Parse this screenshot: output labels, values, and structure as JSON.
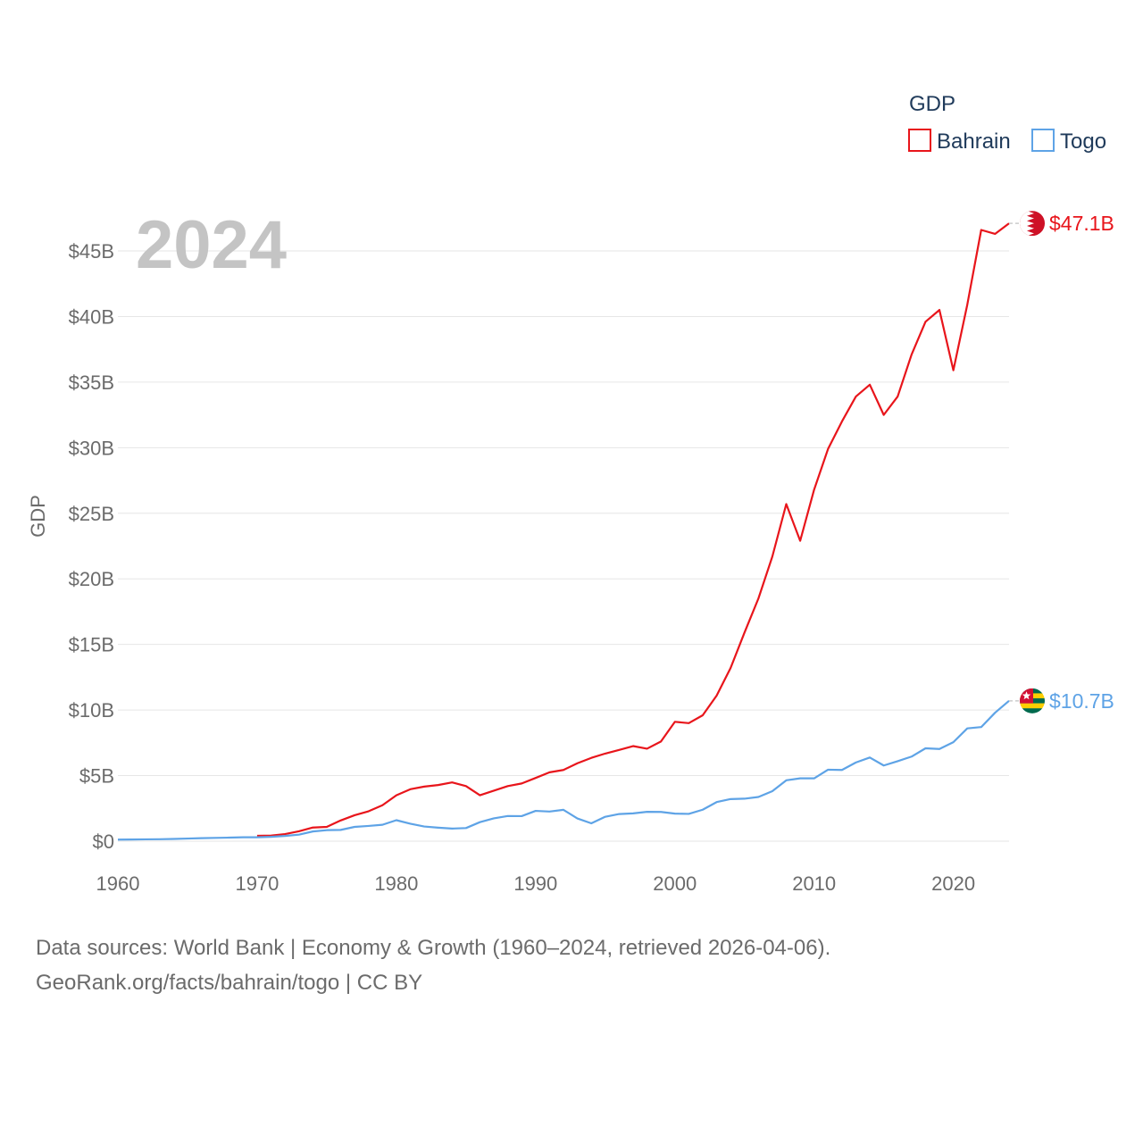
{
  "chart_data": {
    "type": "line",
    "ylabel": "GDP",
    "year_label": "2024",
    "legend": {
      "title": "GDP",
      "position": "top-right"
    },
    "xlim": [
      1960,
      2024
    ],
    "ylim": [
      0,
      47.5
    ],
    "x_ticks": [
      1960,
      1970,
      1980,
      1990,
      2000,
      2010,
      2020
    ],
    "y_ticks": [
      {
        "value": 0,
        "label": "$0"
      },
      {
        "value": 5,
        "label": "$5B"
      },
      {
        "value": 10,
        "label": "$10B"
      },
      {
        "value": 15,
        "label": "$15B"
      },
      {
        "value": 20,
        "label": "$20B"
      },
      {
        "value": 25,
        "label": "$25B"
      },
      {
        "value": 30,
        "label": "$30B"
      },
      {
        "value": 35,
        "label": "$35B"
      },
      {
        "value": 40,
        "label": "$40B"
      },
      {
        "value": 45,
        "label": "$45B"
      }
    ],
    "series": [
      {
        "name": "Bahrain",
        "color": "#e8151b",
        "end_label": "$47.1B",
        "flag": "bahrain-flag",
        "points": [
          [
            1970,
            0.41
          ],
          [
            1971,
            0.43
          ],
          [
            1972,
            0.54
          ],
          [
            1973,
            0.75
          ],
          [
            1974,
            1.04
          ],
          [
            1975,
            1.09
          ],
          [
            1976,
            1.58
          ],
          [
            1977,
            1.98
          ],
          [
            1978,
            2.28
          ],
          [
            1979,
            2.74
          ],
          [
            1980,
            3.5
          ],
          [
            1981,
            3.96
          ],
          [
            1982,
            4.16
          ],
          [
            1983,
            4.28
          ],
          [
            1984,
            4.48
          ],
          [
            1985,
            4.2
          ],
          [
            1986,
            3.5
          ],
          [
            1987,
            3.85
          ],
          [
            1988,
            4.2
          ],
          [
            1989,
            4.4
          ],
          [
            1990,
            4.82
          ],
          [
            1991,
            5.25
          ],
          [
            1992,
            5.43
          ],
          [
            1993,
            5.94
          ],
          [
            1994,
            6.35
          ],
          [
            1995,
            6.68
          ],
          [
            1996,
            6.96
          ],
          [
            1997,
            7.25
          ],
          [
            1998,
            7.05
          ],
          [
            1999,
            7.6
          ],
          [
            2000,
            9.1
          ],
          [
            2001,
            9.0
          ],
          [
            2002,
            9.6
          ],
          [
            2003,
            11.1
          ],
          [
            2004,
            13.2
          ],
          [
            2005,
            15.9
          ],
          [
            2006,
            18.5
          ],
          [
            2007,
            21.7
          ],
          [
            2008,
            25.7
          ],
          [
            2009,
            22.9
          ],
          [
            2010,
            26.8
          ],
          [
            2011,
            29.9
          ],
          [
            2012,
            32.0
          ],
          [
            2013,
            33.9
          ],
          [
            2014,
            34.8
          ],
          [
            2015,
            32.5
          ],
          [
            2016,
            33.9
          ],
          [
            2017,
            37.1
          ],
          [
            2018,
            39.6
          ],
          [
            2019,
            40.5
          ],
          [
            2020,
            35.9
          ],
          [
            2021,
            40.9
          ],
          [
            2022,
            46.6
          ],
          [
            2023,
            46.3
          ],
          [
            2024,
            47.1
          ]
        ]
      },
      {
        "name": "Togo",
        "color": "#5ea3e6",
        "end_label": "$10.7B",
        "flag": "togo-flag",
        "points": [
          [
            1960,
            0.12
          ],
          [
            1961,
            0.13
          ],
          [
            1962,
            0.14
          ],
          [
            1963,
            0.15
          ],
          [
            1964,
            0.17
          ],
          [
            1965,
            0.2
          ],
          [
            1966,
            0.23
          ],
          [
            1967,
            0.25
          ],
          [
            1968,
            0.27
          ],
          [
            1969,
            0.3
          ],
          [
            1970,
            0.3
          ],
          [
            1971,
            0.33
          ],
          [
            1972,
            0.4
          ],
          [
            1973,
            0.5
          ],
          [
            1974,
            0.74
          ],
          [
            1975,
            0.84
          ],
          [
            1976,
            0.86
          ],
          [
            1977,
            1.09
          ],
          [
            1978,
            1.16
          ],
          [
            1979,
            1.25
          ],
          [
            1980,
            1.6
          ],
          [
            1981,
            1.33
          ],
          [
            1982,
            1.12
          ],
          [
            1983,
            1.03
          ],
          [
            1984,
            0.96
          ],
          [
            1985,
            1.0
          ],
          [
            1986,
            1.45
          ],
          [
            1987,
            1.74
          ],
          [
            1988,
            1.92
          ],
          [
            1989,
            1.91
          ],
          [
            1990,
            2.31
          ],
          [
            1991,
            2.26
          ],
          [
            1992,
            2.39
          ],
          [
            1993,
            1.73
          ],
          [
            1994,
            1.36
          ],
          [
            1995,
            1.86
          ],
          [
            1996,
            2.07
          ],
          [
            1997,
            2.12
          ],
          [
            1998,
            2.24
          ],
          [
            1999,
            2.23
          ],
          [
            2000,
            2.1
          ],
          [
            2001,
            2.08
          ],
          [
            2002,
            2.4
          ],
          [
            2003,
            2.98
          ],
          [
            2004,
            3.21
          ],
          [
            2005,
            3.24
          ],
          [
            2006,
            3.37
          ],
          [
            2007,
            3.81
          ],
          [
            2008,
            4.64
          ],
          [
            2009,
            4.79
          ],
          [
            2010,
            4.79
          ],
          [
            2011,
            5.45
          ],
          [
            2012,
            5.43
          ],
          [
            2013,
            6.0
          ],
          [
            2014,
            6.38
          ],
          [
            2015,
            5.77
          ],
          [
            2016,
            6.1
          ],
          [
            2017,
            6.45
          ],
          [
            2018,
            7.08
          ],
          [
            2019,
            7.03
          ],
          [
            2020,
            7.55
          ],
          [
            2021,
            8.6
          ],
          [
            2022,
            8.7
          ],
          [
            2023,
            9.8
          ],
          [
            2024,
            10.7
          ]
        ]
      }
    ]
  },
  "footer": {
    "line1": "Data sources: World Bank | Economy & Growth (1960–2024, retrieved 2026-04-06).",
    "line2": "GeoRank.org/facts/bahrain/togo | CC BY"
  }
}
